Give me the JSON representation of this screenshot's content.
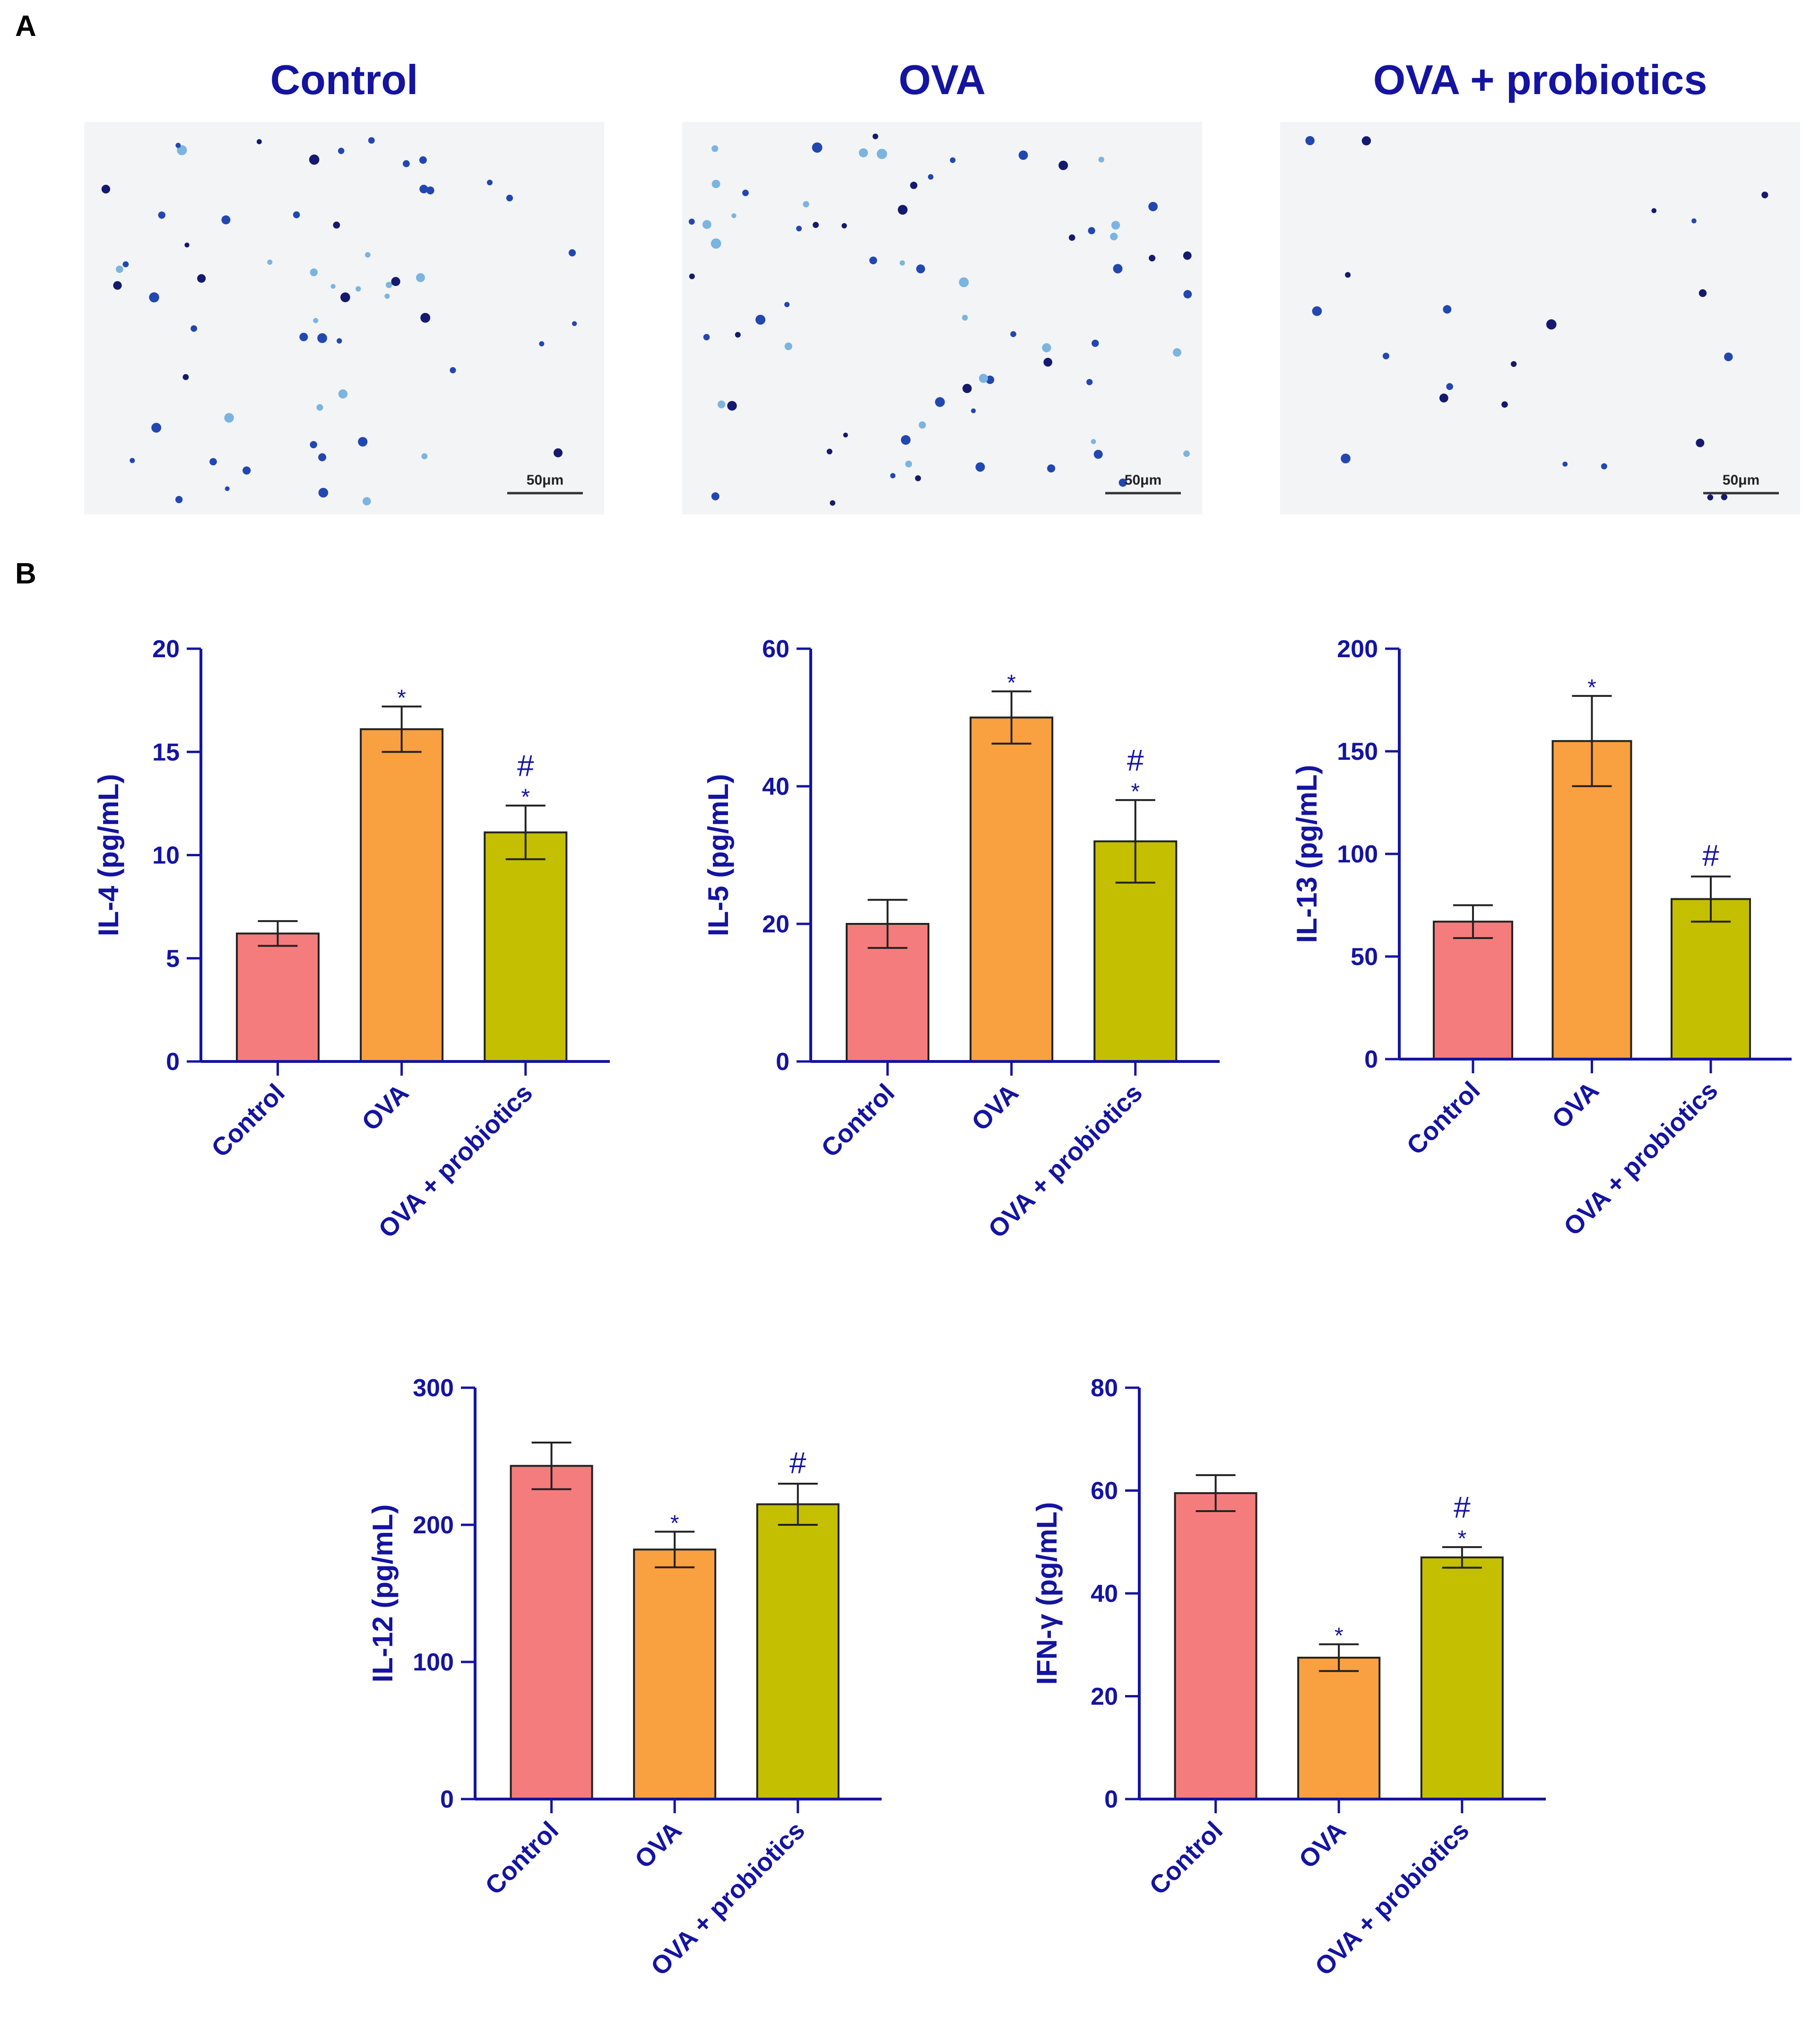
{
  "panels": {
    "a": {
      "label": "A"
    },
    "b": {
      "label": "B"
    }
  },
  "micrographs": [
    {
      "title": "Control",
      "scale_bar": "50μm"
    },
    {
      "title": "OVA",
      "scale_bar": "50μm"
    },
    {
      "title": "OVA + probiotics",
      "scale_bar": "50μm"
    }
  ],
  "colors": {
    "control": "#f57c7c",
    "ova": "#f9a040",
    "probiotics": "#c4bf00",
    "axis": "#1414a0",
    "cell_dark": "#141a6e",
    "cell_mid": "#2347b0",
    "cell_light": "#7bb4e0"
  },
  "chart_data": [
    {
      "type": "bar",
      "categories": [
        "Control",
        "OVA",
        "OVA + probiotics"
      ],
      "values": [
        6.2,
        16.1,
        11.1
      ],
      "errors": [
        0.6,
        1.1,
        1.3
      ],
      "annotations": [
        "",
        "*",
        "*",
        "#"
      ],
      "annotation_map": [
        [],
        [
          "*"
        ],
        [
          "#",
          "*"
        ]
      ],
      "ylabel": "IL-4 (pg/mL)",
      "ylim": [
        0,
        20
      ],
      "yticks": [
        0,
        5,
        10,
        15,
        20
      ]
    },
    {
      "type": "bar",
      "categories": [
        "Control",
        "OVA",
        "OVA + probiotics"
      ],
      "values": [
        20,
        50,
        32
      ],
      "errors": [
        3.5,
        3.8,
        6
      ],
      "annotation_map": [
        [],
        [
          "*"
        ],
        [
          "#",
          "*"
        ]
      ],
      "ylabel": "IL-5 (pg/mL)",
      "ylim": [
        0,
        60
      ],
      "yticks": [
        0,
        20,
        40,
        60
      ]
    },
    {
      "type": "bar",
      "categories": [
        "Control",
        "OVA",
        "OVA + probiotics"
      ],
      "values": [
        67,
        155,
        78
      ],
      "errors": [
        8,
        22,
        11
      ],
      "annotation_map": [
        [],
        [
          "*"
        ],
        [
          "#"
        ]
      ],
      "ylabel": "IL-13 (pg/mL)",
      "ylim": [
        0,
        200
      ],
      "yticks": [
        0,
        50,
        100,
        150,
        200
      ]
    },
    {
      "type": "bar",
      "categories": [
        "Control",
        "OVA",
        "OVA + probiotics"
      ],
      "values": [
        243,
        182,
        215
      ],
      "errors": [
        17,
        13,
        15
      ],
      "annotation_map": [
        [],
        [
          "*"
        ],
        [
          "#"
        ]
      ],
      "ylabel": "IL-12 (pg/mL)",
      "ylim": [
        0,
        300
      ],
      "yticks": [
        0,
        100,
        200,
        300
      ]
    },
    {
      "type": "bar",
      "categories": [
        "Control",
        "OVA",
        "OVA + probiotics"
      ],
      "values": [
        59.5,
        27.5,
        47
      ],
      "errors": [
        3.5,
        2.6,
        2
      ],
      "annotation_map": [
        [],
        [
          "*"
        ],
        [
          "#",
          "*"
        ]
      ],
      "ylabel": "IFN-γ (pg/mL)",
      "ylim": [
        0,
        80
      ],
      "yticks": [
        0,
        20,
        40,
        60,
        80
      ]
    }
  ]
}
